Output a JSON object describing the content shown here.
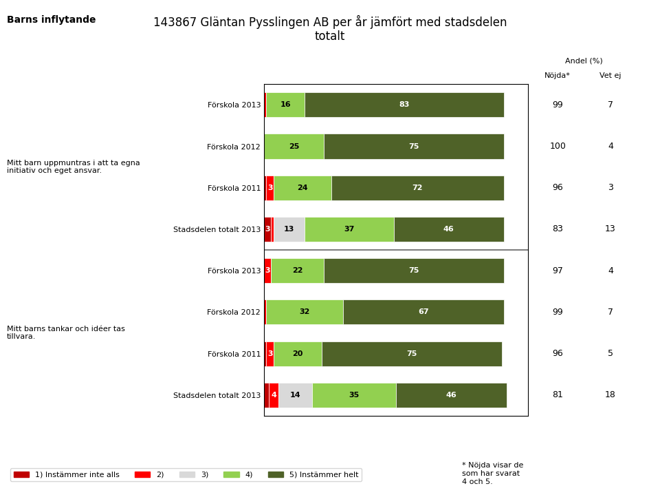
{
  "chart_data": {
    "type": "bar",
    "orientation": "horizontal",
    "stacked": true,
    "data_labels": true,
    "tick_labels": "y",
    "legend": "lower left",
    "title": "143867 Gläntan Pysslingen AB per år jämfört med stadsdelen\ntotalt",
    "header_label": "Barns inflytande",
    "footnote": "* Nöjda visar de\nsom har svarat\n4 och 5.",
    "section_labels": [
      "Mitt barn uppmuntras i att ta egna\ninitiativ och eget ansvar.",
      "Mitt barns tankar och idéer tas\ntillvara."
    ],
    "section_sizes": [
      4,
      4
    ],
    "categories": [
      "Förskola 2013",
      "Förskola 2012",
      "Förskola 2011",
      "Stadsdelen totalt 2013",
      "Förskola 2013",
      "Förskola 2012",
      "Förskola 2011",
      "Stadsdelen totalt 2013"
    ],
    "xlim": [
      0,
      110
    ],
    "series": [
      {
        "name": "1) Instämmer inte alls",
        "color": "#C00000",
        "values": [
          0,
          0,
          1,
          3,
          0,
          0,
          1,
          2
        ],
        "value_labels": [
          null,
          null,
          null,
          "3",
          null,
          null,
          null,
          null
        ]
      },
      {
        "name": "2)",
        "color": "#FF0000",
        "values": [
          1,
          0,
          3,
          1,
          3,
          1,
          3,
          4
        ],
        "value_labels": [
          null,
          null,
          "3",
          null,
          "3",
          null,
          "3",
          "4"
        ]
      },
      {
        "name": "3)",
        "color": "#D9D9D9",
        "values": [
          0,
          0,
          0,
          13,
          0,
          0,
          0,
          14
        ],
        "value_labels": [
          null,
          null,
          null,
          "13",
          null,
          null,
          null,
          "14"
        ]
      },
      {
        "name": "4)",
        "color": "#92D050",
        "values": [
          16,
          25,
          24,
          37,
          22,
          32,
          20,
          35
        ],
        "value_labels": [
          "16",
          "25",
          "24",
          "37",
          "22",
          "32",
          "20",
          "35"
        ]
      },
      {
        "name": "5) Instämmer helt",
        "color": "#4F6228",
        "values": [
          83,
          75,
          72,
          46,
          75,
          67,
          75,
          46
        ],
        "value_labels": [
          "83",
          "75",
          "72",
          "46",
          "75",
          "67",
          "75",
          "46"
        ]
      }
    ],
    "table": {
      "title": "Andel (%)",
      "columns": [
        {
          "name": "Nöjda*",
          "values": [
            99,
            100,
            96,
            83,
            97,
            99,
            96,
            81
          ]
        },
        {
          "name": "Vet ej",
          "values": [
            7,
            4,
            3,
            13,
            4,
            7,
            5,
            18
          ]
        }
      ]
    }
  }
}
